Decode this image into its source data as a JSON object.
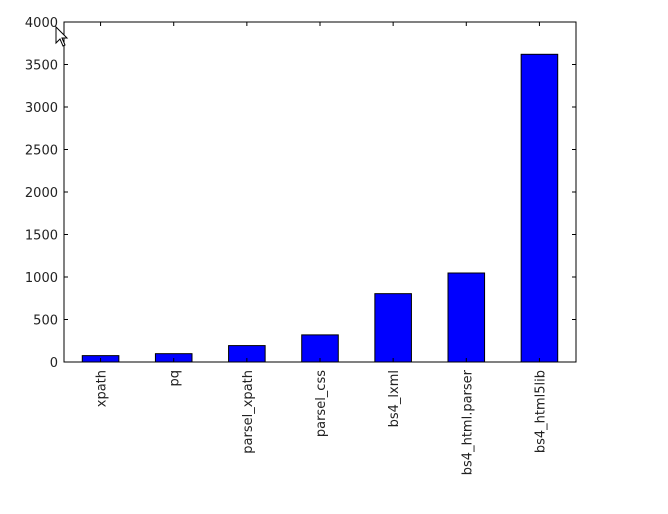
{
  "chart_data": {
    "type": "bar",
    "title": "",
    "xlabel": "",
    "ylabel": "",
    "categories": [
      "xpath",
      "pq",
      "parsel_xpath",
      "parsel_css",
      "bs4_lxml",
      "bs4_html.parser",
      "bs4_html5lib"
    ],
    "values": [
      75,
      98,
      193,
      319,
      804,
      1047,
      3620
    ],
    "ylim": [
      0,
      4000
    ],
    "yticks": [
      0,
      500,
      1000,
      1500,
      2000,
      2500,
      3000,
      3500,
      4000
    ],
    "grid": false,
    "legend": "none",
    "bar_color": "#0000ff",
    "edge_color": "#000000"
  }
}
